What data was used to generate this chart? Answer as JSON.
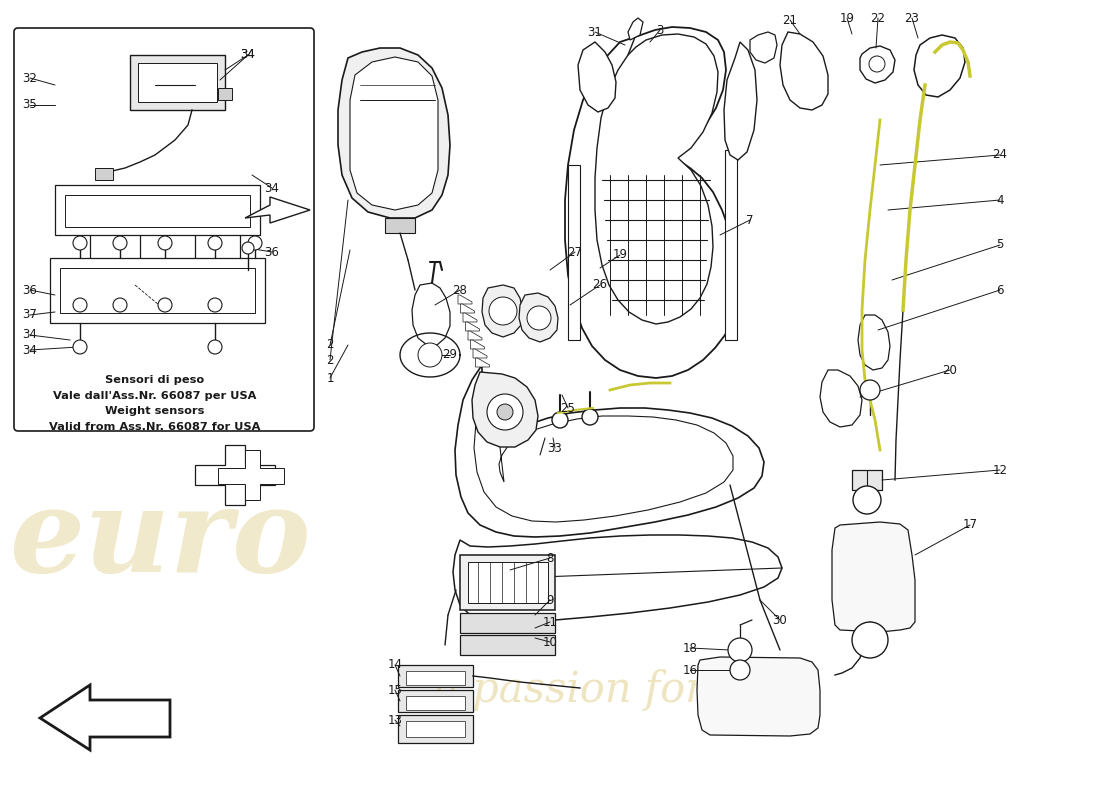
{
  "bg_color": "#ffffff",
  "lc": "#1a1a1a",
  "wc": "#c8a830",
  "figsize": [
    11.0,
    8.0
  ],
  "dpi": 100,
  "inset_label": "Sensori di peso\nVale dall'Ass.Nr. 66087 per USA\nWeight sensors\nValid from Ass.Nr. 66087 for USA"
}
